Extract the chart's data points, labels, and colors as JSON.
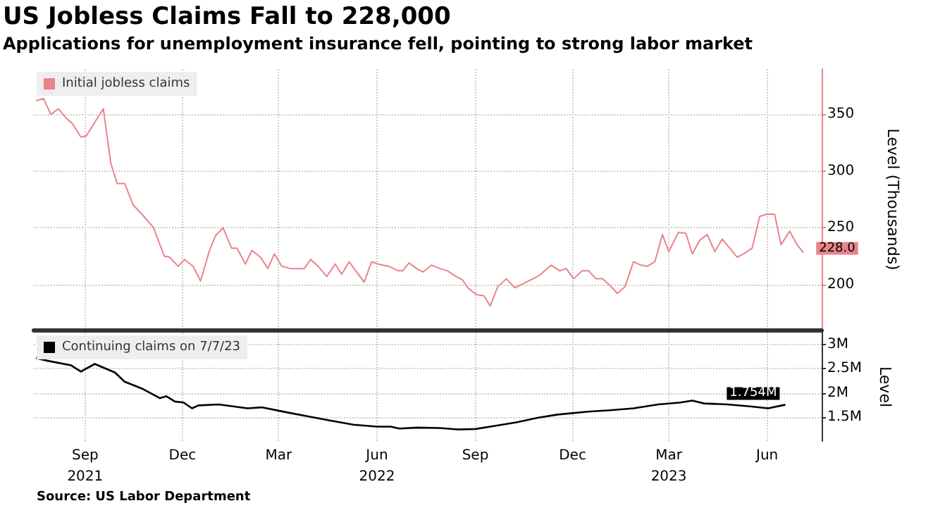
{
  "chart_data": [
    {
      "type": "line",
      "title": "US Jobless Claims Fall to 228,000",
      "subtitle": "Applications for unemployment insurance fell, pointing to strong labor market",
      "ylabel": "Level (Thousands)",
      "legend": "top left",
      "grid": true,
      "tick_labels": "y",
      "xlim": [
        "2021-07-15",
        "2023-07-22"
      ],
      "xticks": [
        {
          "value": "2021-09-01",
          "label": null
        },
        {
          "value": "2021-12-01",
          "label": null
        },
        {
          "value": "2022-03-01",
          "label": null
        },
        {
          "value": "2022-06-01",
          "label": null
        },
        {
          "value": "2022-09-01",
          "label": null
        },
        {
          "value": "2022-12-01",
          "label": null
        },
        {
          "value": "2023-03-01",
          "label": null
        },
        {
          "value": "2023-06-01",
          "label": null
        }
      ],
      "ylim": [
        160,
        390
      ],
      "yticks": [
        200,
        250,
        300,
        350
      ],
      "series": [
        {
          "name": "Initial jobless claims",
          "color": "#e8848a",
          "x": [
            "2021-07-17",
            "2021-07-24",
            "2021-07-31",
            "2021-08-07",
            "2021-08-14",
            "2021-08-20",
            "2021-08-28",
            "2021-09-02",
            "2021-09-18",
            "2021-09-25",
            "2021-10-01",
            "2021-10-08",
            "2021-10-16",
            "2021-10-25",
            "2021-11-04",
            "2021-11-14",
            "2021-11-19",
            "2021-11-27",
            "2021-12-03",
            "2021-12-11",
            "2021-12-18",
            "2021-12-26",
            "2022-01-01",
            "2022-01-08",
            "2022-01-16",
            "2022-01-21",
            "2022-01-29",
            "2022-02-04",
            "2022-02-12",
            "2022-02-19",
            "2022-02-25",
            "2022-03-04",
            "2022-03-12",
            "2022-03-25",
            "2022-03-31",
            "2022-04-07",
            "2022-04-15",
            "2022-04-23",
            "2022-04-29",
            "2022-05-06",
            "2022-05-20",
            "2022-05-27",
            "2022-06-02",
            "2022-06-12",
            "2022-06-21",
            "2022-06-25",
            "2022-07-01",
            "2022-07-08",
            "2022-07-14",
            "2022-07-22",
            "2022-07-30",
            "2022-08-06",
            "2022-08-14",
            "2022-08-20",
            "2022-08-25",
            "2022-09-02",
            "2022-09-09",
            "2022-09-15",
            "2022-09-22",
            "2022-09-30",
            "2022-10-08",
            "2022-10-23",
            "2022-10-31",
            "2022-11-11",
            "2022-11-19",
            "2022-11-25",
            "2022-12-02",
            "2022-12-10",
            "2022-12-16",
            "2022-12-23",
            "2022-12-29",
            "2023-01-05",
            "2023-01-12",
            "2023-01-19",
            "2023-01-27",
            "2023-02-03",
            "2023-02-09",
            "2023-02-16",
            "2023-02-23",
            "2023-03-01",
            "2023-03-10",
            "2023-03-17",
            "2023-03-23",
            "2023-03-30",
            "2023-04-06",
            "2023-04-13",
            "2023-04-20",
            "2023-04-27",
            "2023-05-04",
            "2023-05-10",
            "2023-05-18",
            "2023-05-25",
            "2023-06-01",
            "2023-06-08",
            "2023-06-14",
            "2023-06-22",
            "2023-06-29",
            "2023-07-05"
          ],
          "values": [
            362,
            364,
            350,
            355,
            347,
            342,
            330,
            331,
            355,
            307,
            289,
            289,
            270,
            261,
            250,
            225,
            224,
            216,
            222,
            216,
            203,
            229,
            243,
            250,
            232,
            232,
            218,
            230,
            224,
            214,
            227,
            216,
            214,
            214,
            222,
            216,
            207,
            218,
            209,
            220,
            202,
            220,
            218,
            216,
            212,
            212,
            219,
            214,
            211,
            217,
            214,
            212,
            207,
            204,
            197,
            191,
            190,
            181,
            198,
            205,
            197,
            204,
            208,
            217,
            212,
            214,
            205,
            212,
            212,
            205,
            205,
            199,
            192,
            198,
            220,
            217,
            216,
            220,
            244,
            229,
            246,
            245,
            227,
            239,
            244,
            229,
            240,
            232,
            224,
            227,
            232,
            260,
            262,
            262,
            235,
            247,
            235,
            228
          ],
          "value_labels": [
            null,
            null,
            null,
            null,
            null,
            null,
            null,
            null,
            null,
            null,
            null,
            null,
            null,
            null,
            null,
            null,
            null,
            null,
            null,
            null,
            null,
            null,
            null,
            null,
            null,
            null,
            null,
            null,
            null,
            null,
            null,
            null,
            null,
            null,
            null,
            null,
            null,
            null,
            null,
            null,
            null,
            null,
            null,
            null,
            null,
            null,
            null,
            null,
            null,
            null,
            null,
            null,
            null,
            null,
            null,
            null,
            null,
            null,
            null,
            null,
            null,
            null,
            null,
            null,
            null,
            null,
            null,
            null,
            null,
            null,
            null,
            null,
            null,
            null,
            null,
            null,
            null,
            null,
            null,
            null,
            null,
            null,
            null,
            null,
            null,
            null,
            null,
            null,
            null,
            null,
            null,
            null,
            null,
            null,
            null,
            null,
            null,
            "228.0"
          ]
        }
      ]
    },
    {
      "type": "line",
      "ylabel": "Level",
      "legend": "top left",
      "grid": true,
      "xlim": [
        "2021-07-15",
        "2023-07-22"
      ],
      "xticks": [
        {
          "value": "2021-09-01",
          "label": "Sep\n2021"
        },
        {
          "value": "2021-12-01",
          "label": "Dec"
        },
        {
          "value": "2022-03-01",
          "label": "Mar"
        },
        {
          "value": "2022-06-01",
          "label": "Jun\n2022"
        },
        {
          "value": "2022-09-01",
          "label": "Sep"
        },
        {
          "value": "2022-12-01",
          "label": "Dec"
        },
        {
          "value": "2023-03-01",
          "label": "Mar\n2023"
        },
        {
          "value": "2023-06-01",
          "label": "Jun"
        }
      ],
      "ylim": [
        1.0,
        3.25
      ],
      "yticks": [
        {
          "value": 1.5,
          "label": "1.5M"
        },
        {
          "value": 2,
          "label": "2M"
        },
        {
          "value": 2.5,
          "label": "2.5M"
        },
        {
          "value": 3,
          "label": "3M"
        }
      ],
      "annotations": [
        "Source: US Labor Department"
      ],
      "series": [
        {
          "name": "Continuing claims on 7/7/23",
          "color": "#000000",
          "x": [
            "2021-07-17",
            "2021-07-29",
            "2021-08-19",
            "2021-08-28",
            "2021-09-10",
            "2021-09-29",
            "2021-10-08",
            "2021-10-25",
            "2021-11-10",
            "2021-11-16",
            "2021-11-24",
            "2021-12-02",
            "2021-12-10",
            "2021-12-16",
            "2022-01-04",
            "2022-01-31",
            "2022-02-13",
            "2022-03-10",
            "2022-03-27",
            "2022-04-17",
            "2022-05-10",
            "2022-06-01",
            "2022-06-14",
            "2022-06-22",
            "2022-07-09",
            "2022-07-30",
            "2022-08-16",
            "2022-09-01",
            "2022-09-18",
            "2022-10-10",
            "2022-10-31",
            "2022-11-17",
            "2022-12-15",
            "2023-01-05",
            "2023-01-27",
            "2023-02-19",
            "2023-03-12",
            "2023-03-23",
            "2023-04-03",
            "2023-04-25",
            "2023-05-16",
            "2023-06-02",
            "2023-06-18"
          ],
          "values": [
            2.72,
            2.66,
            2.57,
            2.44,
            2.6,
            2.42,
            2.23,
            2.08,
            1.89,
            1.93,
            1.82,
            1.8,
            1.68,
            1.74,
            1.76,
            1.68,
            1.7,
            1.59,
            1.52,
            1.43,
            1.34,
            1.3,
            1.3,
            1.26,
            1.28,
            1.27,
            1.24,
            1.25,
            1.31,
            1.39,
            1.49,
            1.55,
            1.61,
            1.64,
            1.68,
            1.76,
            1.8,
            1.84,
            1.78,
            1.76,
            1.72,
            1.68,
            1.754
          ],
          "value_labels": [
            null,
            null,
            null,
            null,
            null,
            null,
            null,
            null,
            null,
            null,
            null,
            null,
            null,
            null,
            null,
            null,
            null,
            null,
            null,
            null,
            null,
            null,
            null,
            null,
            null,
            null,
            null,
            null,
            null,
            null,
            null,
            null,
            null,
            null,
            null,
            null,
            null,
            null,
            null,
            null,
            null,
            null,
            "1.754M"
          ]
        }
      ]
    }
  ]
}
